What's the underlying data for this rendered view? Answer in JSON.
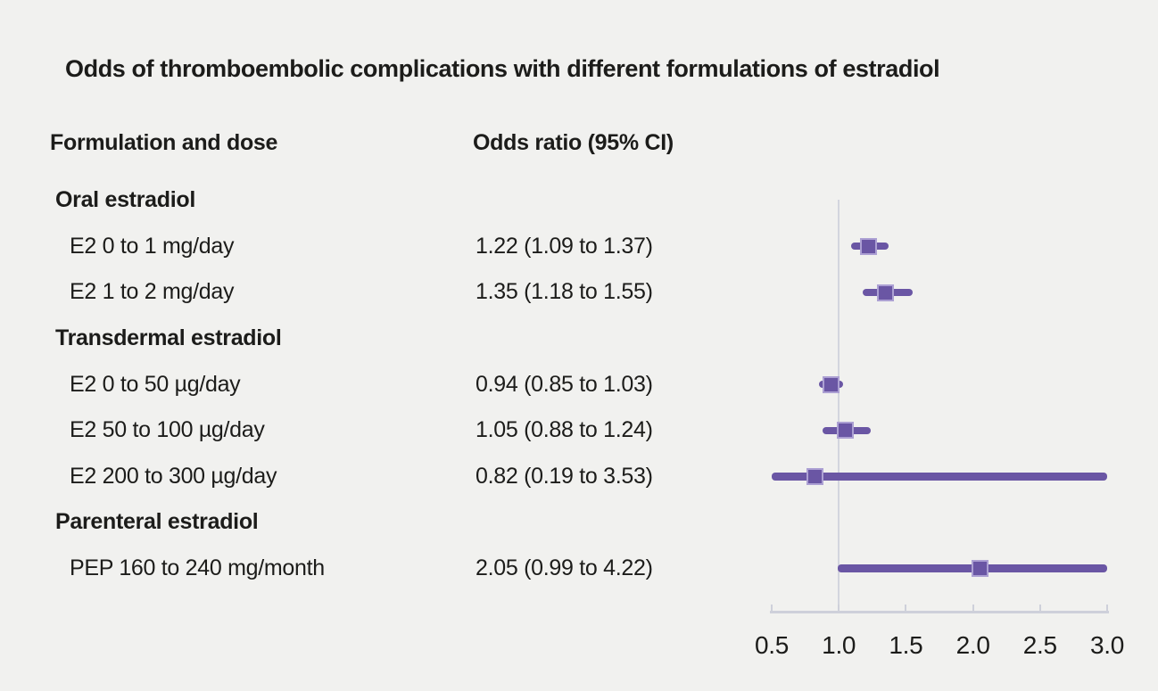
{
  "chart_data": {
    "type": "scatter",
    "subtype": "forest-plot",
    "title": "Odds of thromboembolic complications with different formulations of estradiol",
    "columns": {
      "formulation": "Formulation and dose",
      "odds_ratio": "Odds ratio (95% CI)"
    },
    "xlabel": "",
    "ylabel": "",
    "xlim": [
      0.5,
      3.0
    ],
    "x_ticks": [
      0.5,
      1.0,
      1.5,
      2.0,
      2.5,
      3.0
    ],
    "x_tick_labels": [
      "0.5",
      "1.0",
      "1.5",
      "2.0",
      "2.5",
      "3.0"
    ],
    "reference_line_x": 1.0,
    "grid": false,
    "legend": "none",
    "rows": [
      {
        "type": "group",
        "label": "Oral estradiol"
      },
      {
        "type": "item",
        "label": "E2 0 to 1 mg/day",
        "or_text": "1.22 (1.09 to 1.37)",
        "estimate": 1.22,
        "ci_low": 1.09,
        "ci_high": 1.37
      },
      {
        "type": "item",
        "label": "E2 1 to 2 mg/day",
        "or_text": "1.35 (1.18 to 1.55)",
        "estimate": 1.35,
        "ci_low": 1.18,
        "ci_high": 1.55
      },
      {
        "type": "group",
        "label": "Transdermal estradiol"
      },
      {
        "type": "item",
        "label": "E2 0 to 50 µg/day",
        "or_text": "0.94 (0.85 to 1.03)",
        "estimate": 0.94,
        "ci_low": 0.85,
        "ci_high": 1.03
      },
      {
        "type": "item",
        "label": "E2 50 to 100 µg/day",
        "or_text": "1.05 (0.88 to 1.24)",
        "estimate": 1.05,
        "ci_low": 0.88,
        "ci_high": 1.24
      },
      {
        "type": "item",
        "label": "E2 200 to 300 µg/day",
        "or_text": "0.82 (0.19 to 3.53)",
        "estimate": 0.82,
        "ci_low": 0.19,
        "ci_high": 3.53
      },
      {
        "type": "group",
        "label": "Parenteral estradiol"
      },
      {
        "type": "item",
        "label": "PEP 160 to 240 mg/month",
        "or_text": "2.05 (0.99 to 4.22)",
        "estimate": 2.05,
        "ci_low": 0.99,
        "ci_high": 4.22
      }
    ],
    "colors": {
      "marker": "#6a56a4",
      "marker_edge": "#aca0d3",
      "axis": "#ced0da",
      "reference_line": "#d3d5de",
      "background": "#f1f1ef",
      "text": "#1c1c1a"
    }
  }
}
